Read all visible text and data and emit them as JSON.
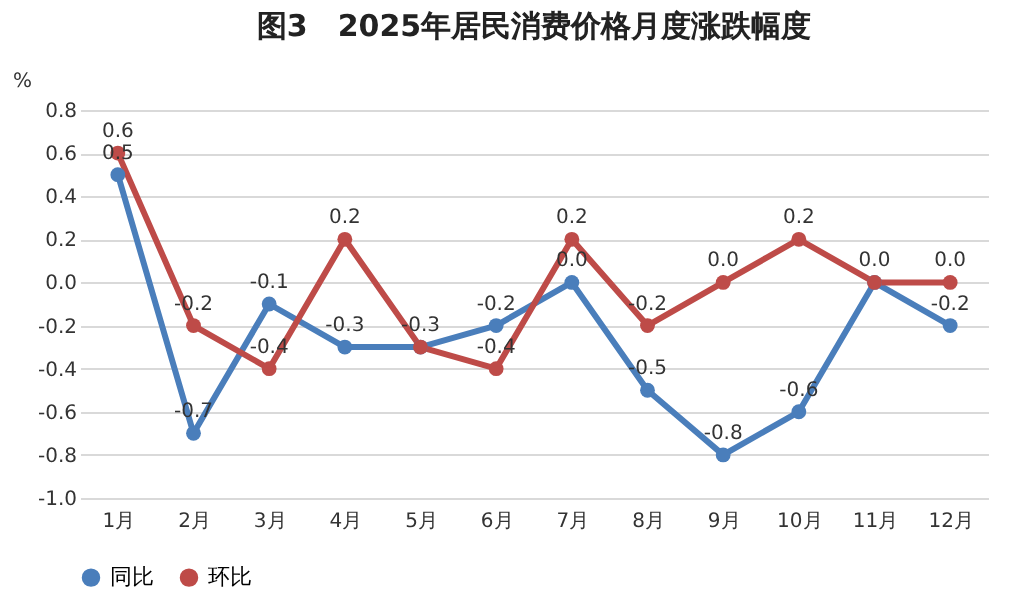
{
  "chart_data": {
    "type": "line",
    "title": "图3　2025年居民消费价格月度涨跌幅度",
    "ylabel": "%",
    "categories": [
      "1月",
      "2月",
      "3月",
      "4月",
      "5月",
      "6月",
      "7月",
      "8月",
      "9月",
      "10月",
      "11月",
      "12月"
    ],
    "series": [
      {
        "name": "同比",
        "color": "#4a7ebb",
        "values": [
          0.5,
          -0.7,
          -0.1,
          -0.3,
          -0.3,
          -0.2,
          0.0,
          -0.5,
          -0.8,
          -0.6,
          0.0,
          -0.2
        ],
        "value_labels": [
          "0.5",
          "-0.7",
          "-0.1",
          "-0.3",
          "-0.3",
          "-0.2",
          "0.0",
          "-0.5",
          "-0.8",
          "-0.6",
          "0.0",
          "-0.2"
        ]
      },
      {
        "name": "环比",
        "color": "#be4b48",
        "values": [
          0.6,
          -0.2,
          -0.4,
          0.2,
          -0.3,
          -0.4,
          0.2,
          -0.2,
          0.0,
          0.2,
          0.0,
          0.0
        ],
        "value_labels": [
          "0.6",
          "-0.2",
          "-0.4",
          "0.2",
          null,
          "-0.4",
          "0.2",
          "-0.2",
          "0.0",
          "0.2",
          null,
          "0.0"
        ]
      }
    ],
    "ylim": [
      -1.0,
      0.8
    ],
    "yticks": [
      {
        "value": -1.0,
        "label": "-1.0"
      },
      {
        "value": -0.8,
        "label": "-0.8"
      },
      {
        "value": -0.6,
        "label": "-0.6"
      },
      {
        "value": -0.4,
        "label": "-0.4"
      },
      {
        "value": -0.2,
        "label": "-0.2"
      },
      {
        "value": 0,
        "label": "0.0"
      },
      {
        "value": 0.2,
        "label": "0.2"
      },
      {
        "value": 0.4,
        "label": "0.4"
      },
      {
        "value": 0.6,
        "label": "0.6"
      },
      {
        "value": 0.8,
        "label": "0.8"
      }
    ],
    "grid": "y",
    "legend": "bottom",
    "marker": "circle",
    "line_style": "solid"
  }
}
